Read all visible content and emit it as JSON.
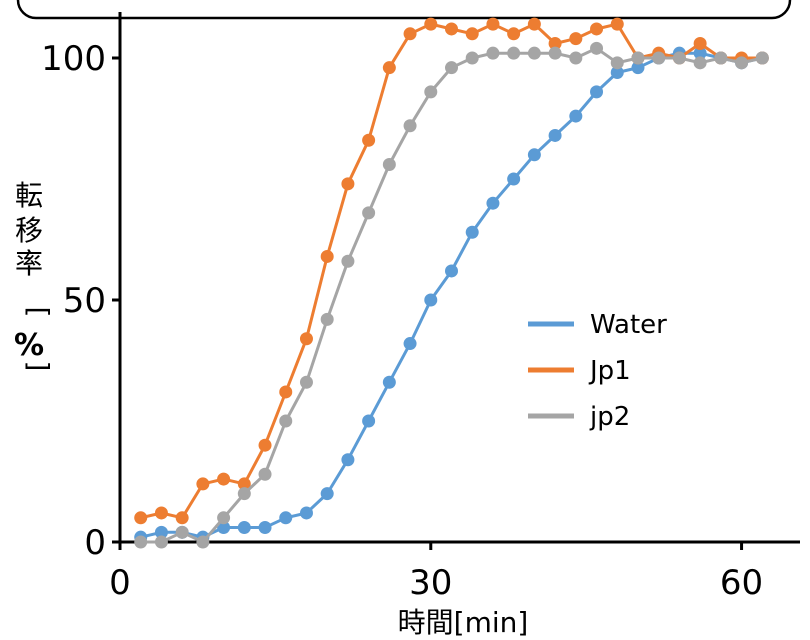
{
  "chart_data": {
    "type": "line",
    "ylabel_chars": [
      "転",
      "移",
      "率",
      "[",
      "%",
      "]"
    ],
    "xlabel": "時間[min]",
    "xlim": [
      0,
      64
    ],
    "ylim": [
      0,
      100
    ],
    "x_ticks": [
      0,
      30,
      60
    ],
    "y_ticks": [
      0,
      50,
      100
    ],
    "grid": false,
    "legend_position": "center-right",
    "series": [
      {
        "name": "Water",
        "color": "#5B9BD5",
        "x": [
          2,
          4,
          6,
          8,
          10,
          12,
          14,
          16,
          18,
          20,
          22,
          24,
          26,
          28,
          30,
          32,
          34,
          36,
          38,
          40,
          42,
          44,
          46,
          48,
          50,
          52,
          54,
          56,
          58,
          60,
          62
        ],
        "y": [
          1,
          2,
          2,
          1,
          3,
          3,
          3,
          5,
          6,
          10,
          17,
          25,
          33,
          41,
          50,
          56,
          64,
          70,
          75,
          80,
          84,
          88,
          93,
          97,
          98,
          100,
          101,
          101,
          100,
          99,
          100
        ]
      },
      {
        "name": "Jp1",
        "color": "#ED7D31",
        "x": [
          2,
          4,
          6,
          8,
          10,
          12,
          14,
          16,
          18,
          20,
          22,
          24,
          26,
          28,
          30,
          32,
          34,
          36,
          38,
          40,
          42,
          44,
          46,
          48,
          50,
          52,
          54,
          56,
          58,
          60,
          62
        ],
        "y": [
          5,
          6,
          5,
          12,
          13,
          12,
          20,
          31,
          42,
          59,
          74,
          83,
          98,
          105,
          107,
          106,
          105,
          107,
          105,
          107,
          103,
          104,
          106,
          107,
          100,
          101,
          100,
          103,
          100,
          100,
          100
        ]
      },
      {
        "name": "jp2",
        "color": "#A5A5A5",
        "x": [
          2,
          4,
          6,
          8,
          10,
          12,
          14,
          16,
          18,
          20,
          22,
          24,
          26,
          28,
          30,
          32,
          34,
          36,
          38,
          40,
          42,
          44,
          46,
          48,
          50,
          52,
          54,
          56,
          58,
          60,
          62
        ],
        "y": [
          0,
          0,
          2,
          0,
          5,
          10,
          14,
          25,
          33,
          46,
          58,
          68,
          78,
          86,
          93,
          98,
          100,
          101,
          101,
          101,
          101,
          100,
          102,
          99,
          100,
          100,
          100,
          99,
          100,
          99,
          100
        ]
      }
    ]
  }
}
